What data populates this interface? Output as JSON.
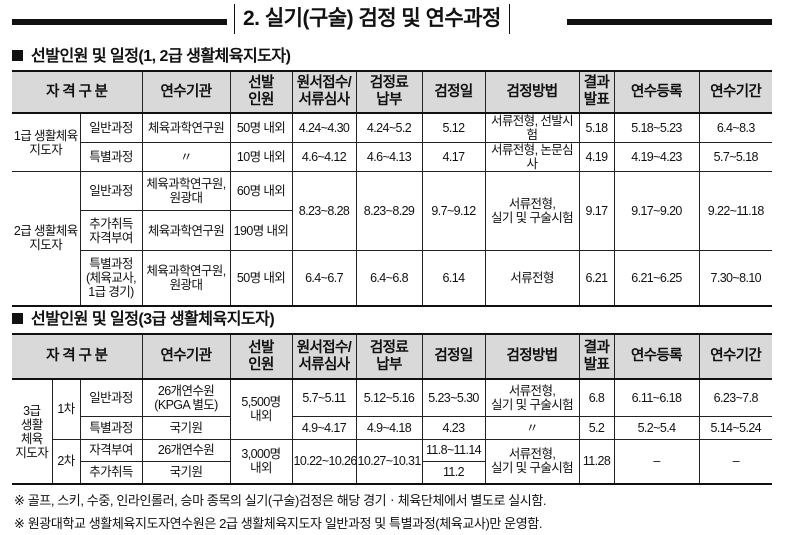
{
  "title": "2. 실기(구술) 검정 및 연수과정",
  "section1": {
    "heading": "선발인원 및 일정(1, 2급 생활체육지도자)",
    "header": [
      {
        "t": "자 격 구 분",
        "cs": 2
      },
      {
        "t": "연수기관"
      },
      {
        "t": "선발\n인원"
      },
      {
        "t": "원서접수/\n서류심사"
      },
      {
        "t": "검정료\n납부"
      },
      {
        "t": "검정일"
      },
      {
        "t": "검정방법"
      },
      {
        "t": "결과\n발표"
      },
      {
        "t": "연수등록"
      },
      {
        "t": "연수기간"
      }
    ],
    "rows": [
      [
        {
          "t": "1급 생활체육\n지도자",
          "rs": 2
        },
        {
          "t": "일반과정"
        },
        {
          "t": "체육과학연구원"
        },
        {
          "t": "50명 내외"
        },
        {
          "t": "4.24~4.30"
        },
        {
          "t": "4.24~5.2"
        },
        {
          "t": "5.12"
        },
        {
          "t": "서류전형, 선발시험"
        },
        {
          "t": "5.18"
        },
        {
          "t": "5.18~5.23"
        },
        {
          "t": "6.4~8.3"
        }
      ],
      [
        {
          "t": "특별과정"
        },
        {
          "t": "〃"
        },
        {
          "t": "10명 내외"
        },
        {
          "t": "4.6~4.12"
        },
        {
          "t": "4.6~4.13"
        },
        {
          "t": "4.17"
        },
        {
          "t": "서류전형, 논문심사"
        },
        {
          "t": "4.19"
        },
        {
          "t": "4.19~4.23"
        },
        {
          "t": "5.7~5.18"
        }
      ],
      [
        {
          "t": "2급 생활체육\n지도자",
          "rs": 3
        },
        {
          "t": "일반과정"
        },
        {
          "t": "체육과학연구원,\n원광대"
        },
        {
          "t": "60명 내외"
        },
        {
          "t": "8.23~8.28",
          "rs": 2
        },
        {
          "t": "8.23~8.29",
          "rs": 2
        },
        {
          "t": "9.7~9.12",
          "rs": 2
        },
        {
          "t": "서류전형,\n실기 및 구술시험",
          "rs": 2
        },
        {
          "t": "9.17",
          "rs": 2
        },
        {
          "t": "9.17~9.20",
          "rs": 2
        },
        {
          "t": "9.22~11.18",
          "rs": 2
        }
      ],
      [
        {
          "t": "추가취득\n자격부여"
        },
        {
          "t": "체육과학연구원"
        },
        {
          "t": "190명 내외"
        }
      ],
      [
        {
          "t": "특별과정\n(체육교사,\n1급 경기)"
        },
        {
          "t": "체육과학연구원,\n원광대"
        },
        {
          "t": "50명 내외"
        },
        {
          "t": "6.4~6.7"
        },
        {
          "t": "6.4~6.8"
        },
        {
          "t": "6.14"
        },
        {
          "t": "서류전형"
        },
        {
          "t": "6.21"
        },
        {
          "t": "6.21~6.25"
        },
        {
          "t": "7.30~8.10"
        }
      ]
    ]
  },
  "section2": {
    "heading": "선발인원 및 일정(3급 생활체육지도자)",
    "header": [
      {
        "t": "자 격 구 분",
        "cs": 3
      },
      {
        "t": "연수기관"
      },
      {
        "t": "선발\n인원"
      },
      {
        "t": "원서접수/\n서류심사"
      },
      {
        "t": "검정료\n납부"
      },
      {
        "t": "검정일"
      },
      {
        "t": "검정방법"
      },
      {
        "t": "결과\n발표"
      },
      {
        "t": "연수등록"
      },
      {
        "t": "연수기간"
      }
    ],
    "rows": [
      [
        {
          "t": "3급\n생활\n체육\n지도자",
          "rs": 4
        },
        {
          "t": "1차",
          "rs": 2
        },
        {
          "t": "일반과정"
        },
        {
          "t": "26개연수원\n(KPGA 별도)"
        },
        {
          "t": "5,500명\n내외",
          "rs": 2
        },
        {
          "t": "5.7~5.11"
        },
        {
          "t": "5.12~5.16"
        },
        {
          "t": "5.23~5.30"
        },
        {
          "t": "서류전형,\n실기 및 구술시험"
        },
        {
          "t": "6.8"
        },
        {
          "t": "6.11~6.18"
        },
        {
          "t": "6.23~7.8"
        }
      ],
      [
        {
          "t": "특별과정"
        },
        {
          "t": "국기원"
        },
        {
          "t": "4.9~4.17"
        },
        {
          "t": "4.9~4.18"
        },
        {
          "t": "4.23"
        },
        {
          "t": "〃"
        },
        {
          "t": "5.2"
        },
        {
          "t": "5.2~5.4"
        },
        {
          "t": "5.14~5.24"
        }
      ],
      [
        {
          "t": "2차",
          "rs": 2
        },
        {
          "t": "자격부여"
        },
        {
          "t": "26개연수원"
        },
        {
          "t": "3,000명\n내외",
          "rs": 2
        },
        {
          "t": "10.22~10.26",
          "rs": 2
        },
        {
          "t": "10.27~10.31",
          "rs": 2
        },
        {
          "t": "11.8~11.14"
        },
        {
          "t": "서류전형,\n실기 및 구술시험",
          "rs": 2
        },
        {
          "t": "11.28",
          "rs": 2
        },
        {
          "t": "–",
          "rs": 2
        },
        {
          "t": "–",
          "rs": 2
        }
      ],
      [
        {
          "t": "추가취득"
        },
        {
          "t": "국기원"
        },
        {
          "t": "11.2"
        }
      ]
    ]
  },
  "notes": [
    "※ 골프, 스키, 수중, 인라인롤러, 승마 종목의 실기(구술)검정은 해당 경기ㆍ체육단체에서 별도로 실시함.",
    "※ 원광대학교 생활체육지도자연수원은 2급 생활체육지도자 일반과정 및 특별과정(체육교사)만 운영함."
  ]
}
